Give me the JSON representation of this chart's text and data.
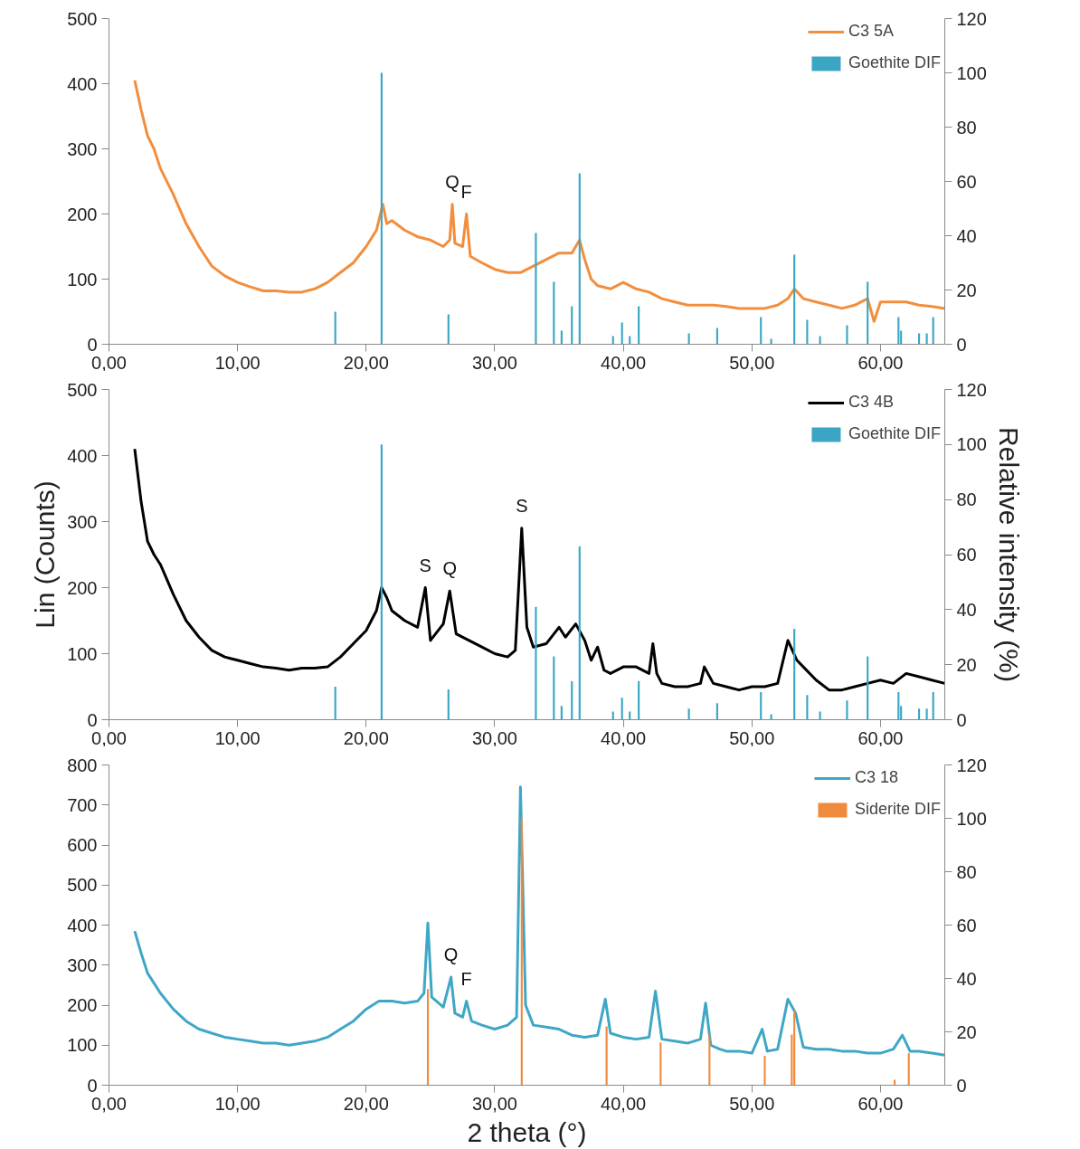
{
  "chart_data": [
    {
      "type": "line",
      "xlim": [
        0,
        65
      ],
      "ylim": [
        0,
        500
      ],
      "y2lim": [
        0,
        120
      ],
      "xticks": [
        {
          "value": 0,
          "label": "0,00"
        },
        {
          "value": 10,
          "label": "10,00"
        },
        {
          "value": 20,
          "label": "20,00"
        },
        {
          "value": 30,
          "label": "30,00"
        },
        {
          "value": 40,
          "label": "40,00"
        },
        {
          "value": 50,
          "label": "50,00"
        },
        {
          "value": 60,
          "label": "60,00"
        }
      ],
      "yticks": [
        0,
        100,
        200,
        300,
        400,
        500
      ],
      "y2ticks": [
        0,
        20,
        40,
        60,
        80,
        100,
        120
      ],
      "grid": false,
      "legend": "top right",
      "annotations": [
        {
          "text": "Q",
          "x": 26.7,
          "y": 215
        },
        {
          "text": "F",
          "x": 27.8,
          "y": 200
        }
      ],
      "series": [
        {
          "name": "C3 5A",
          "color": "#f28e3c",
          "x": [
            2.0,
            2.5,
            3.0,
            3.5,
            4.0,
            5.0,
            6.0,
            7.0,
            8.0,
            9.0,
            10,
            11,
            12,
            13,
            14,
            15,
            16,
            17,
            18,
            19,
            20,
            20.8,
            21.3,
            21.6,
            22,
            23,
            24,
            25,
            26,
            26.5,
            26.7,
            26.9,
            27.5,
            27.8,
            28.1,
            29,
            30,
            31,
            32,
            33,
            34,
            35,
            36,
            36.6,
            37,
            37.5,
            38,
            39,
            40,
            41,
            42,
            43,
            44,
            45,
            46,
            47,
            48,
            49,
            50,
            51,
            52,
            52.8,
            53.3,
            54,
            55,
            56,
            57,
            58,
            58.5,
            59,
            59.5,
            60,
            61,
            62,
            63,
            64,
            65
          ],
          "values": [
            405,
            360,
            320,
            300,
            270,
            230,
            185,
            150,
            120,
            105,
            95,
            88,
            82,
            82,
            80,
            80,
            85,
            95,
            110,
            125,
            150,
            175,
            215,
            185,
            190,
            175,
            165,
            160,
            150,
            160,
            215,
            155,
            150,
            200,
            135,
            125,
            115,
            110,
            110,
            120,
            130,
            140,
            140,
            160,
            130,
            100,
            90,
            85,
            95,
            85,
            80,
            70,
            65,
            60,
            60,
            60,
            58,
            55,
            55,
            55,
            60,
            70,
            85,
            70,
            65,
            60,
            55,
            60,
            65,
            70,
            35,
            65,
            65,
            65,
            60,
            58,
            55
          ]
        },
        {
          "name": "Goethite DIF",
          "type": "bar",
          "axis": "y2",
          "color": "#3aa6c4",
          "x": [
            17.6,
            21.2,
            26.4,
            33.2,
            34.6,
            35.2,
            36.0,
            36.6,
            39.2,
            39.9,
            40.5,
            41.2,
            45.1,
            47.3,
            50.7,
            51.5,
            53.3,
            54.3,
            55.3,
            57.4,
            59.0,
            61.4,
            61.6,
            63.0,
            63.6,
            64.1
          ],
          "values": [
            12,
            100,
            11,
            41,
            23,
            5,
            14,
            63,
            3,
            8,
            3,
            14,
            4,
            6,
            10,
            2,
            33,
            9,
            3,
            7,
            23,
            10,
            5,
            4,
            4,
            10
          ]
        }
      ]
    },
    {
      "type": "line",
      "xlim": [
        0,
        65
      ],
      "ylim": [
        0,
        500
      ],
      "y2lim": [
        0,
        120
      ],
      "xticks": [
        {
          "value": 0,
          "label": "0,00"
        },
        {
          "value": 10,
          "label": "10,00"
        },
        {
          "value": 20,
          "label": "20,00"
        },
        {
          "value": 30,
          "label": "30,00"
        },
        {
          "value": 40,
          "label": "40,00"
        },
        {
          "value": 50,
          "label": "50,00"
        },
        {
          "value": 60,
          "label": "60,00"
        }
      ],
      "yticks": [
        0,
        100,
        200,
        300,
        400,
        500
      ],
      "y2ticks": [
        0,
        20,
        40,
        60,
        80,
        100,
        120
      ],
      "ylabel": "Lin (Counts)",
      "y2label": "Relative intensity (%)",
      "grid": false,
      "legend": "top right",
      "annotations": [
        {
          "text": "S",
          "x": 24.6,
          "y": 200
        },
        {
          "text": "Q",
          "x": 26.5,
          "y": 195
        },
        {
          "text": "S",
          "x": 32.1,
          "y": 290
        }
      ],
      "series": [
        {
          "name": "C3 4B",
          "color": "#000000",
          "x": [
            2.0,
            2.5,
            3.0,
            3.5,
            4.0,
            5,
            6,
            7,
            8,
            9,
            10,
            11,
            12,
            13,
            14,
            15,
            16,
            17,
            18,
            19,
            20,
            20.8,
            21.2,
            21.6,
            22,
            23,
            24,
            24.6,
            25,
            26,
            26.5,
            27,
            28,
            29,
            30,
            31,
            31.6,
            32.1,
            32.5,
            33,
            34,
            35,
            35.5,
            36.3,
            37,
            37.5,
            38,
            38.5,
            39,
            40,
            41,
            42,
            42.3,
            42.6,
            43,
            44,
            45,
            46,
            46.3,
            47,
            48,
            49,
            50,
            51,
            52,
            52.8,
            53.5,
            54,
            55,
            56,
            57,
            58,
            59,
            60,
            61,
            62,
            63,
            64,
            65
          ],
          "values": [
            410,
            330,
            270,
            250,
            235,
            190,
            150,
            125,
            105,
            95,
            90,
            85,
            80,
            78,
            75,
            78,
            78,
            80,
            95,
            115,
            135,
            165,
            200,
            185,
            165,
            150,
            140,
            200,
            120,
            145,
            195,
            130,
            120,
            110,
            100,
            95,
            105,
            290,
            140,
            110,
            115,
            140,
            125,
            145,
            120,
            90,
            110,
            75,
            70,
            80,
            80,
            70,
            115,
            70,
            55,
            50,
            50,
            55,
            80,
            55,
            50,
            45,
            50,
            50,
            55,
            120,
            90,
            80,
            60,
            45,
            45,
            50,
            55,
            60,
            55,
            70,
            65,
            60,
            55
          ]
        },
        {
          "name": "Goethite DIF",
          "type": "bar",
          "axis": "y2",
          "color": "#3aa6c4",
          "x": [
            17.6,
            21.2,
            26.4,
            33.2,
            34.6,
            35.2,
            36.0,
            36.6,
            39.2,
            39.9,
            40.5,
            41.2,
            45.1,
            47.3,
            50.7,
            51.5,
            53.3,
            54.3,
            55.3,
            57.4,
            59.0,
            61.4,
            61.6,
            63.0,
            63.6,
            64.1
          ],
          "values": [
            12,
            100,
            11,
            41,
            23,
            5,
            14,
            63,
            3,
            8,
            3,
            14,
            4,
            6,
            10,
            2,
            33,
            9,
            3,
            7,
            23,
            10,
            5,
            4,
            4,
            10
          ]
        }
      ]
    },
    {
      "type": "line",
      "xlim": [
        0,
        65
      ],
      "ylim": [
        0,
        800
      ],
      "y2lim": [
        0,
        120
      ],
      "xticks": [
        {
          "value": 0,
          "label": "0,00"
        },
        {
          "value": 10,
          "label": "10,00"
        },
        {
          "value": 20,
          "label": "20,00"
        },
        {
          "value": 30,
          "label": "30,00"
        },
        {
          "value": 40,
          "label": "40,00"
        },
        {
          "value": 50,
          "label": "50,00"
        },
        {
          "value": 60,
          "label": "60,00"
        }
      ],
      "yticks": [
        0,
        100,
        200,
        300,
        400,
        500,
        600,
        700,
        800
      ],
      "y2ticks": [
        0,
        20,
        40,
        60,
        80,
        100,
        120
      ],
      "xlabel": "2 theta (°)",
      "grid": false,
      "legend": "top right",
      "annotations": [
        {
          "text": "Q",
          "x": 26.6,
          "y": 270
        },
        {
          "text": "F",
          "x": 27.8,
          "y": 210
        }
      ],
      "series": [
        {
          "name": "C3 18",
          "color": "#3fa7c6",
          "x": [
            2.0,
            2.5,
            3,
            4,
            5,
            6,
            7,
            8,
            9,
            10,
            11,
            12,
            13,
            14,
            15,
            16,
            17,
            18,
            19,
            20,
            21,
            22,
            23,
            24,
            24.5,
            24.8,
            25.1,
            26,
            26.6,
            26.9,
            27.5,
            27.8,
            28.2,
            29,
            30,
            31,
            31.7,
            32.0,
            32.4,
            33,
            34,
            35,
            36,
            37,
            38,
            38.6,
            39,
            40,
            41,
            42,
            42.5,
            43,
            44,
            45,
            46,
            46.4,
            46.8,
            47.5,
            48,
            49,
            50,
            50.8,
            51.2,
            52,
            52.8,
            53.4,
            54,
            55,
            56,
            57,
            58,
            59,
            60,
            61,
            61.7,
            62.3,
            63,
            64,
            65
          ],
          "values": [
            385,
            330,
            280,
            230,
            190,
            160,
            140,
            130,
            120,
            115,
            110,
            105,
            105,
            100,
            105,
            110,
            120,
            140,
            160,
            190,
            210,
            210,
            205,
            210,
            230,
            405,
            220,
            195,
            270,
            180,
            170,
            210,
            160,
            150,
            140,
            150,
            170,
            745,
            200,
            150,
            145,
            140,
            125,
            120,
            125,
            215,
            130,
            120,
            115,
            120,
            235,
            115,
            110,
            105,
            115,
            205,
            100,
            90,
            85,
            85,
            80,
            140,
            85,
            90,
            215,
            180,
            95,
            90,
            90,
            85,
            85,
            80,
            80,
            90,
            125,
            85,
            85,
            80,
            75
          ]
        },
        {
          "name": "Siderite DIF",
          "type": "bar",
          "axis": "y2",
          "color": "#f08a3c",
          "x": [
            24.8,
            32.1,
            38.7,
            42.9,
            46.7,
            51.0,
            53.1,
            53.3,
            61.1,
            62.2
          ],
          "values": [
            36,
            100,
            22,
            16,
            19,
            11,
            19,
            28,
            2,
            12
          ]
        }
      ]
    }
  ]
}
